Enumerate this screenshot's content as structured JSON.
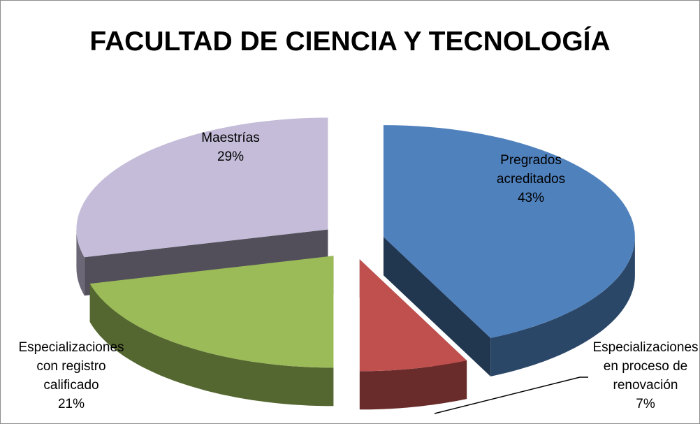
{
  "chart_data": {
    "type": "pie3d",
    "title": "FACULTAD DE CIENCIA Y TECNOLOGÍA",
    "categories": [
      "Pregrados acreditados",
      "Especializaciones en proceso de renovación",
      "Especializaciones con registro calificado",
      "Maestrías"
    ],
    "values": [
      43,
      7,
      21,
      29
    ],
    "value_labels": [
      "43%",
      "7%",
      "21%",
      "29%"
    ],
    "colors": [
      "#4f81bd",
      "#c0504d",
      "#9bbb59",
      "#c4bcd8"
    ]
  }
}
